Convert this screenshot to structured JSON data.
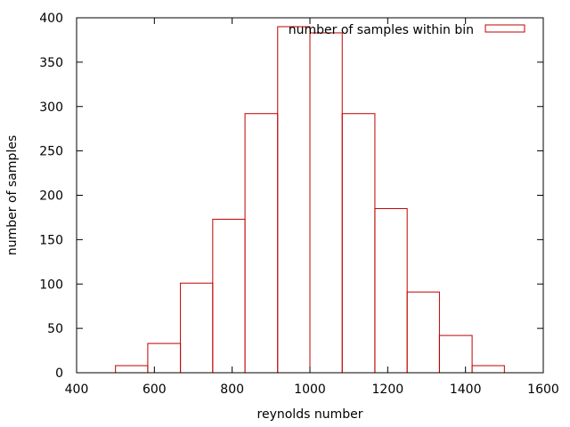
{
  "chart_data": {
    "type": "bar",
    "title": "",
    "xlabel": "reynolds number",
    "ylabel": "number of samples",
    "xlim": [
      400,
      1600
    ],
    "ylim": [
      0,
      400
    ],
    "xticks": [
      400,
      600,
      800,
      1000,
      1200,
      1400,
      1600
    ],
    "yticks": [
      0,
      50,
      100,
      150,
      200,
      250,
      300,
      350,
      400
    ],
    "grid": false,
    "legend_position": "top-right",
    "series": [
      {
        "name": "number of samples within bin",
        "color": "#c00000",
        "bins": [
          {
            "x0": 500,
            "x1": 583,
            "value": 8
          },
          {
            "x0": 583,
            "x1": 667,
            "value": 33
          },
          {
            "x0": 667,
            "x1": 750,
            "value": 101
          },
          {
            "x0": 750,
            "x1": 833,
            "value": 173
          },
          {
            "x0": 833,
            "x1": 917,
            "value": 292
          },
          {
            "x0": 917,
            "x1": 1000,
            "value": 390
          },
          {
            "x0": 1000,
            "x1": 1083,
            "value": 383
          },
          {
            "x0": 1083,
            "x1": 1167,
            "value": 292
          },
          {
            "x0": 1167,
            "x1": 1250,
            "value": 185
          },
          {
            "x0": 1250,
            "x1": 1333,
            "value": 91
          },
          {
            "x0": 1333,
            "x1": 1417,
            "value": 42
          },
          {
            "x0": 1417,
            "x1": 1500,
            "value": 8
          }
        ]
      }
    ]
  }
}
